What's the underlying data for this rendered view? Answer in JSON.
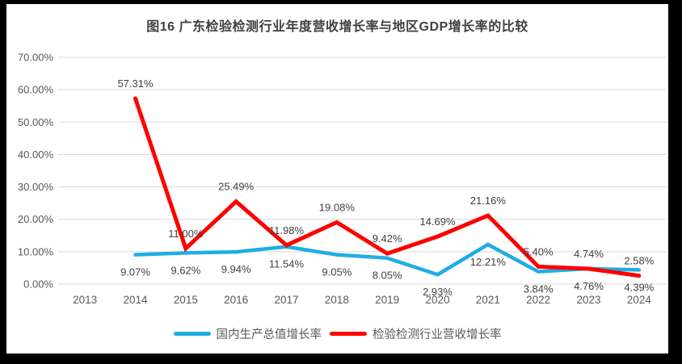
{
  "frame": {
    "border_color": "#000000",
    "panel_background": "#ffffff"
  },
  "chart_data": {
    "type": "line",
    "title": "图16 广东检验检测行业年度营收增长率与地区GDP增长率的比较",
    "categories": [
      "2013",
      "2014",
      "2015",
      "2016",
      "2017",
      "2018",
      "2019",
      "2020",
      "2021",
      "2022",
      "2023",
      "2024"
    ],
    "series": [
      {
        "id": "gdp-growth",
        "name": "国内生产总值增长率",
        "color": "#1FADE4",
        "stroke_width": 4.5,
        "label_position": "below",
        "values": [
          null,
          9.07,
          9.62,
          9.94,
          11.54,
          9.05,
          8.05,
          2.93,
          12.21,
          3.84,
          4.76,
          4.39
        ],
        "labels": [
          "",
          "9.07%",
          "9.62%",
          "9.94%",
          "11.54%",
          "9.05%",
          "8.05%",
          "2.93%",
          "12.21%",
          "3.84%",
          "4.76%",
          "4.39%"
        ]
      },
      {
        "id": "industry-revenue-growth",
        "name": "检验检测行业营收增长率",
        "color": "#FE0000",
        "stroke_width": 5,
        "label_position": "above",
        "values": [
          null,
          57.31,
          11.0,
          25.49,
          11.98,
          19.08,
          9.42,
          14.69,
          21.16,
          5.4,
          4.74,
          2.58
        ],
        "labels": [
          "",
          "57.31%",
          "11.00%",
          "25.49%",
          "11.98%",
          "19.08%",
          "9.42%",
          "14.69%",
          "21.16%",
          "5.40%",
          "4.74%",
          "2.58%"
        ]
      }
    ],
    "y_axis": {
      "min": 0,
      "max": 70,
      "step": 10,
      "tick_labels": [
        "0.00%",
        "10.00%",
        "20.00%",
        "30.00%",
        "40.00%",
        "50.00%",
        "60.00%",
        "70.00%"
      ]
    },
    "grid": true,
    "gridline_color": "#D9D9D9",
    "axis_label_color": "#595959",
    "data_label_color": "#404040",
    "legend_position": "bottom"
  }
}
